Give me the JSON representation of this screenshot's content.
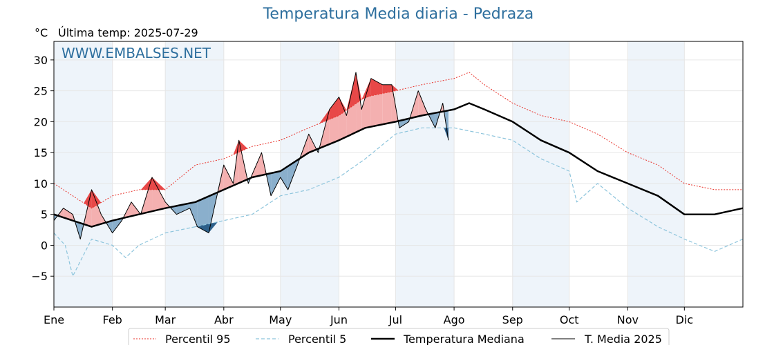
{
  "header": {
    "title": "Temperatura Media diaria - Pedraza",
    "unit": "°C",
    "last_temp": "Última temp: 2025-07-29",
    "watermark": "WWW.EMBALSES.NET"
  },
  "colors": {
    "p95": "#e8312a",
    "p5": "#8cc4dc",
    "median": "#000000",
    "current": "#000000",
    "above": "#f4b0b0",
    "above_strong": "#e84848",
    "below": "#8aafcc",
    "below_strong": "#2c5f8a",
    "band": "#eef4fa",
    "watermark": "#2e6f9e"
  },
  "chart_data": {
    "type": "line",
    "title": "Temperatura Media diaria - Pedraza",
    "ylabel": "°C",
    "ylim": [
      -10,
      33
    ],
    "yticks": [
      30,
      25,
      20,
      15,
      10,
      5,
      0,
      -5
    ],
    "ytick_labels": [
      "30",
      "25",
      "20",
      "15",
      "10",
      "5",
      "0",
      "−5"
    ],
    "xlim": [
      0,
      365
    ],
    "month_starts": [
      0,
      31,
      59,
      90,
      120,
      151,
      181,
      212,
      243,
      273,
      304,
      334
    ],
    "month_labels": [
      "Ene",
      "Feb",
      "Mar",
      "Abr",
      "May",
      "Jun",
      "Jul",
      "Ago",
      "Sep",
      "Oct",
      "Nov",
      "Dic"
    ],
    "grid": true,
    "legend_position": "bottom",
    "series": [
      {
        "name": "Percentil 95",
        "style": "dotted",
        "x": [
          0,
          10,
          20,
          31,
          45,
          59,
          75,
          90,
          105,
          120,
          135,
          151,
          165,
          181,
          195,
          212,
          220,
          228,
          243,
          258,
          273,
          288,
          304,
          320,
          334,
          350,
          365
        ],
        "y": [
          10,
          8,
          6,
          8,
          9,
          9,
          13,
          14,
          16,
          17,
          19,
          21,
          24,
          25,
          26,
          27,
          28,
          26,
          23,
          21,
          20,
          18,
          15,
          13,
          10,
          9,
          9
        ]
      },
      {
        "name": "Percentil 5",
        "style": "dashed",
        "x": [
          0,
          6,
          10,
          20,
          31,
          38,
          45,
          59,
          75,
          90,
          105,
          120,
          135,
          151,
          165,
          181,
          195,
          212,
          228,
          243,
          258,
          273,
          277,
          288,
          304,
          320,
          334,
          350,
          365
        ],
        "y": [
          2,
          0,
          -5,
          1,
          0,
          -2,
          0,
          2,
          3,
          4,
          5,
          8,
          9,
          11,
          14,
          18,
          19,
          19,
          18,
          17,
          14,
          12,
          7,
          10,
          6,
          3,
          1,
          -1,
          1
        ]
      },
      {
        "name": "Temperatura Mediana",
        "style": "solid-thick",
        "x": [
          0,
          10,
          20,
          31,
          45,
          59,
          75,
          90,
          105,
          120,
          135,
          151,
          165,
          181,
          195,
          212,
          220,
          228,
          243,
          258,
          273,
          288,
          304,
          320,
          334,
          350,
          365
        ],
        "y": [
          5,
          4,
          3,
          4,
          5,
          6,
          7,
          9,
          11,
          12,
          15,
          17,
          19,
          20,
          21,
          22,
          23,
          22,
          20,
          17,
          15,
          12,
          10,
          8,
          5,
          5,
          6
        ]
      },
      {
        "name": "T. Media 2025",
        "style": "solid-thin",
        "x": [
          0,
          5,
          10,
          14,
          20,
          25,
          31,
          36,
          41,
          46,
          52,
          59,
          65,
          72,
          76,
          82,
          90,
          95,
          98,
          103,
          110,
          115,
          120,
          124,
          129,
          135,
          140,
          146,
          151,
          155,
          160,
          163,
          168,
          174,
          179,
          183,
          188,
          193,
          197,
          202,
          206,
          209
        ],
        "y": [
          4,
          6,
          5,
          1,
          9,
          5,
          2,
          4,
          7,
          5,
          11,
          7,
          5,
          6,
          3,
          2,
          13,
          10,
          17,
          10,
          15,
          8,
          11,
          9,
          13,
          18,
          15,
          22,
          24,
          21,
          28,
          22,
          27,
          26,
          26,
          19,
          20,
          25,
          22,
          19,
          23,
          17
        ]
      }
    ]
  },
  "legend": {
    "p95_label": "Percentil 95",
    "p5_label": "Percentil 5",
    "median_label": "Temperatura Mediana",
    "current_label": "T. Media 2025"
  }
}
